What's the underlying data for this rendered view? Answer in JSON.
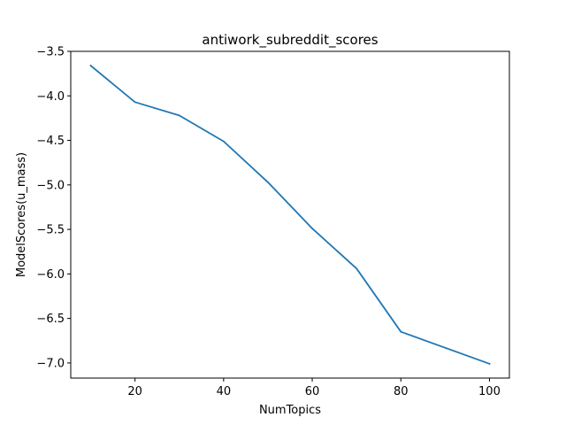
{
  "chart_data": {
    "type": "line",
    "title": "antiwork_subreddit_scores",
    "xlabel": "NumTopics",
    "ylabel": "ModelScores(u_mass)",
    "xlim": [
      5.5,
      104.5
    ],
    "ylim": [
      -7.17,
      -3.5
    ],
    "xticks": [
      20,
      40,
      60,
      80,
      100
    ],
    "xtick_labels": [
      "20",
      "40",
      "60",
      "80",
      "100"
    ],
    "yticks": [
      -3.5,
      -4.0,
      -4.5,
      -5.0,
      -5.5,
      -6.0,
      -6.5,
      -7.0
    ],
    "ytick_labels": [
      "−3.5",
      "−4.0",
      "−4.5",
      "−5.0",
      "−5.5",
      "−6.0",
      "−6.5",
      "−7.0"
    ],
    "grid": false,
    "series": [
      {
        "color": "#1f77b4",
        "x": [
          10,
          20,
          30,
          40,
          50,
          60,
          70,
          80,
          90,
          100
        ],
        "y": [
          -3.66,
          -4.07,
          -4.22,
          -4.51,
          -4.97,
          -5.49,
          -5.94,
          -6.65,
          -6.83,
          -7.01
        ]
      }
    ]
  }
}
